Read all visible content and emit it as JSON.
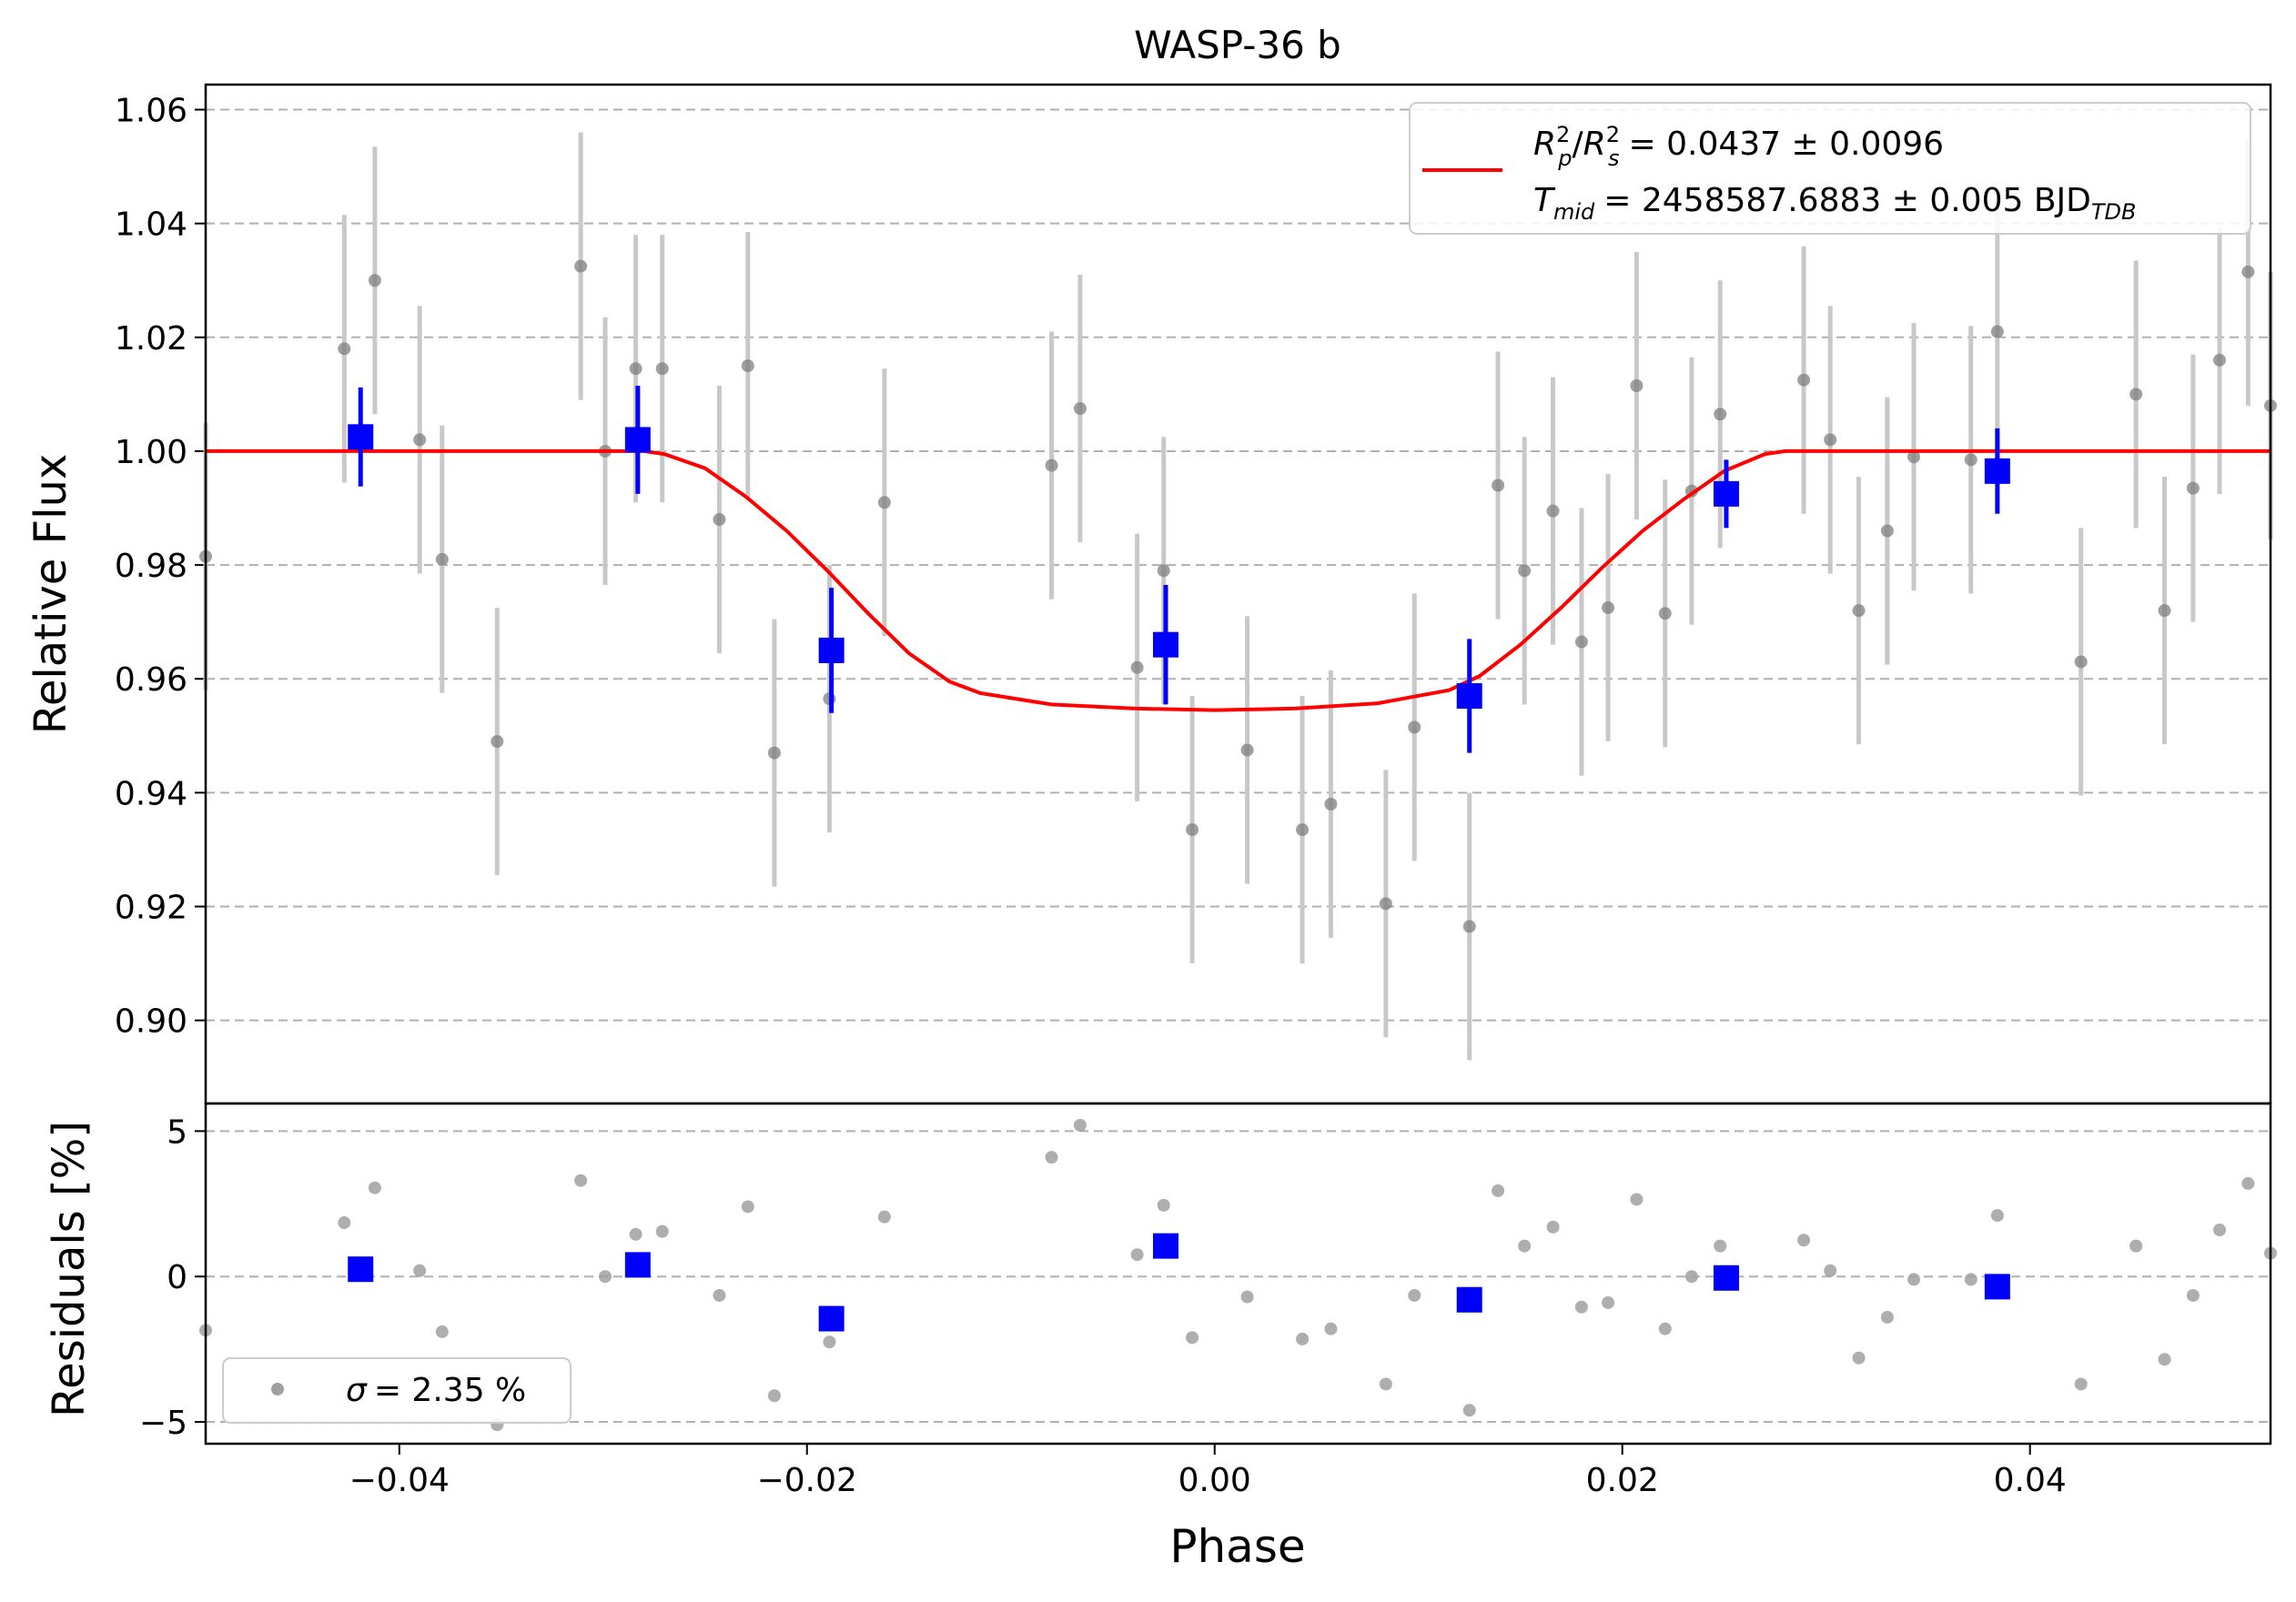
{
  "chart_data": [
    {
      "type": "scatter",
      "panel": "main",
      "title": "WASP-36 b",
      "xlabel": "",
      "ylabel": "Relative Flux",
      "xlim": [
        -0.0495,
        0.0518
      ],
      "ylim": [
        0.8854,
        1.0644
      ],
      "yticks": [
        0.9,
        0.92,
        0.94,
        0.96,
        0.98,
        1.0,
        1.02,
        1.04,
        1.06
      ],
      "ytick_labels": [
        "0.90",
        "0.92",
        "0.94",
        "0.96",
        "0.98",
        "1.00",
        "1.02",
        "1.04",
        "1.06"
      ],
      "grid": "y-dashed",
      "legend": {
        "placement": "top-right",
        "entries": [
          {
            "series": "model",
            "line1": "= 0.0437 ± 0.0096",
            "line2": "= 2458587.6883 ± 0.005 BJD"
          },
          {
            "r_sym": "R",
            "p_sub": "p",
            "s_sub": "s",
            "sup": "2",
            "t_sym": "T",
            "mid_sub": "mid",
            "tdb_sub": "TDB"
          }
        ]
      },
      "series": [
        {
          "name": "unbinned",
          "color": "#7f7f7f",
          "errcolor": "#c8c8c8",
          "x": [
            -0.0495,
            -0.0427,
            -0.0412,
            -0.039,
            -0.0379,
            -0.0352,
            -0.0311,
            -0.0299,
            -0.0284,
            -0.0271,
            -0.0243,
            -0.0229,
            -0.0216,
            -0.0189,
            -0.0162,
            -0.008,
            -0.0066,
            -0.0038,
            -0.0025,
            -0.0011,
            0.0016,
            0.0043,
            0.0057,
            0.0084,
            0.0098,
            0.0125,
            0.0139,
            0.0152,
            0.0166,
            0.018,
            0.0193,
            0.0207,
            0.0221,
            0.0234,
            0.0248,
            0.0289,
            0.0302,
            0.0316,
            0.033,
            0.0343,
            0.0371,
            0.0384,
            0.0425,
            0.0452,
            0.0466,
            0.048,
            0.0493,
            0.0507,
            0.0518
          ],
          "y": [
            0.9815,
            1.018,
            1.03,
            1.002,
            0.981,
            0.949,
            1.0325,
            1.0,
            1.0145,
            1.0145,
            0.988,
            1.015,
            0.947,
            0.9565,
            0.991,
            0.9975,
            1.0075,
            0.962,
            0.979,
            0.9335,
            0.9475,
            0.9335,
            0.938,
            0.9205,
            0.9515,
            0.9165,
            0.994,
            0.979,
            0.9895,
            0.9665,
            0.9725,
            1.0115,
            0.9715,
            0.993,
            1.0065,
            1.0125,
            1.002,
            0.972,
            0.986,
            0.999,
            0.9985,
            1.021,
            0.963,
            1.01,
            0.972,
            0.9935,
            1.016,
            1.0315,
            1.008
          ],
          "yerr": [
            0.0235,
            0.0235,
            0.0235,
            0.0235,
            0.0235,
            0.0235,
            0.0235,
            0.0235,
            0.0235,
            0.0235,
            0.0235,
            0.0235,
            0.0235,
            0.0235,
            0.0235,
            0.0235,
            0.0235,
            0.0235,
            0.0235,
            0.0235,
            0.0235,
            0.0235,
            0.0235,
            0.0235,
            0.0235,
            0.0235,
            0.0235,
            0.0235,
            0.0235,
            0.0235,
            0.0235,
            0.0235,
            0.0235,
            0.0235,
            0.0235,
            0.0235,
            0.0235,
            0.0235,
            0.0235,
            0.0235,
            0.0235,
            0.0235,
            0.0235,
            0.0235,
            0.0235,
            0.0235,
            0.0235,
            0.0235,
            0.0235
          ]
        },
        {
          "name": "binned",
          "color": "#0000ff",
          "x": [
            -0.0419,
            -0.0283,
            -0.0188,
            -0.0024,
            0.0125,
            0.0251,
            0.0384
          ],
          "y": [
            1.0025,
            1.002,
            0.965,
            0.966,
            0.957,
            0.9925,
            0.9965
          ],
          "yerr": [
            0.0087,
            0.0095,
            0.011,
            0.0105,
            0.01,
            0.006,
            0.0075
          ]
        },
        {
          "name": "model",
          "color": "#ff0000",
          "x": [
            -0.0495,
            -0.028,
            -0.027,
            -0.025,
            -0.023,
            -0.021,
            -0.019,
            -0.017,
            -0.015,
            -0.013,
            -0.0115,
            -0.008,
            -0.004,
            0.0,
            0.004,
            0.008,
            0.0115,
            0.013,
            0.015,
            0.017,
            0.019,
            0.021,
            0.023,
            0.025,
            0.027,
            0.028,
            0.0518
          ],
          "y": [
            1.0,
            1.0,
            0.9995,
            0.997,
            0.992,
            0.986,
            0.979,
            0.9715,
            0.9645,
            0.9595,
            0.9575,
            0.9555,
            0.9548,
            0.9545,
            0.9548,
            0.9557,
            0.958,
            0.9605,
            0.966,
            0.9725,
            0.9795,
            0.986,
            0.9915,
            0.9965,
            0.9995,
            1.0,
            1.0
          ]
        }
      ]
    },
    {
      "type": "scatter",
      "panel": "residuals",
      "xlabel": "Phase",
      "ylabel": "Residuals [%]",
      "xlim": [
        -0.0495,
        0.0518
      ],
      "ylim": [
        -5.75,
        5.95
      ],
      "xticks": [
        -0.04,
        -0.02,
        0.0,
        0.02,
        0.04
      ],
      "xtick_labels": [
        "−0.04",
        "−0.02",
        "0.00",
        "0.02",
        "0.04"
      ],
      "yticks": [
        -5,
        0,
        5
      ],
      "ytick_labels": [
        "−5",
        "0",
        "5"
      ],
      "grid": "y-dashed",
      "legend": {
        "placement": "bottom-left",
        "label": "= 2.35 %",
        "symbol": "σ"
      },
      "series": [
        {
          "name": "unbinned",
          "color": "#a0a0a0",
          "x": [
            -0.0495,
            -0.0427,
            -0.0412,
            -0.039,
            -0.0379,
            -0.0352,
            -0.0311,
            -0.0299,
            -0.0284,
            -0.0271,
            -0.0243,
            -0.0229,
            -0.0216,
            -0.0189,
            -0.0162,
            -0.008,
            -0.0066,
            -0.0038,
            -0.0025,
            -0.0011,
            0.0016,
            0.0043,
            0.0057,
            0.0084,
            0.0098,
            0.0125,
            0.0139,
            0.0152,
            0.0166,
            0.018,
            0.0193,
            0.0207,
            0.0221,
            0.0234,
            0.0248,
            0.0289,
            0.0302,
            0.0316,
            0.033,
            0.0343,
            0.0371,
            0.0384,
            0.0425,
            0.0452,
            0.0466,
            0.048,
            0.0493,
            0.0507,
            0.0518
          ],
          "y": [
            -1.85,
            1.85,
            3.05,
            0.2,
            -1.9,
            -5.1,
            3.3,
            0.0,
            1.45,
            1.55,
            -0.65,
            2.4,
            -4.1,
            -2.25,
            2.05,
            4.1,
            5.2,
            0.75,
            2.45,
            -2.1,
            -0.7,
            -2.15,
            -1.8,
            -3.7,
            -0.65,
            -4.6,
            2.95,
            1.05,
            1.7,
            -1.05,
            -0.9,
            2.65,
            -1.8,
            0.0,
            1.05,
            1.25,
            0.2,
            -2.8,
            -1.4,
            -0.1,
            -0.1,
            2.1,
            -3.7,
            1.05,
            -2.85,
            -0.65,
            1.6,
            3.2,
            0.8
          ]
        },
        {
          "name": "binned",
          "color": "#0000ff",
          "x": [
            -0.0419,
            -0.0283,
            -0.0188,
            -0.0024,
            0.0125,
            0.0251,
            0.0384
          ],
          "y": [
            0.25,
            0.4,
            -1.45,
            1.05,
            -0.8,
            -0.05,
            -0.35
          ]
        }
      ]
    }
  ]
}
